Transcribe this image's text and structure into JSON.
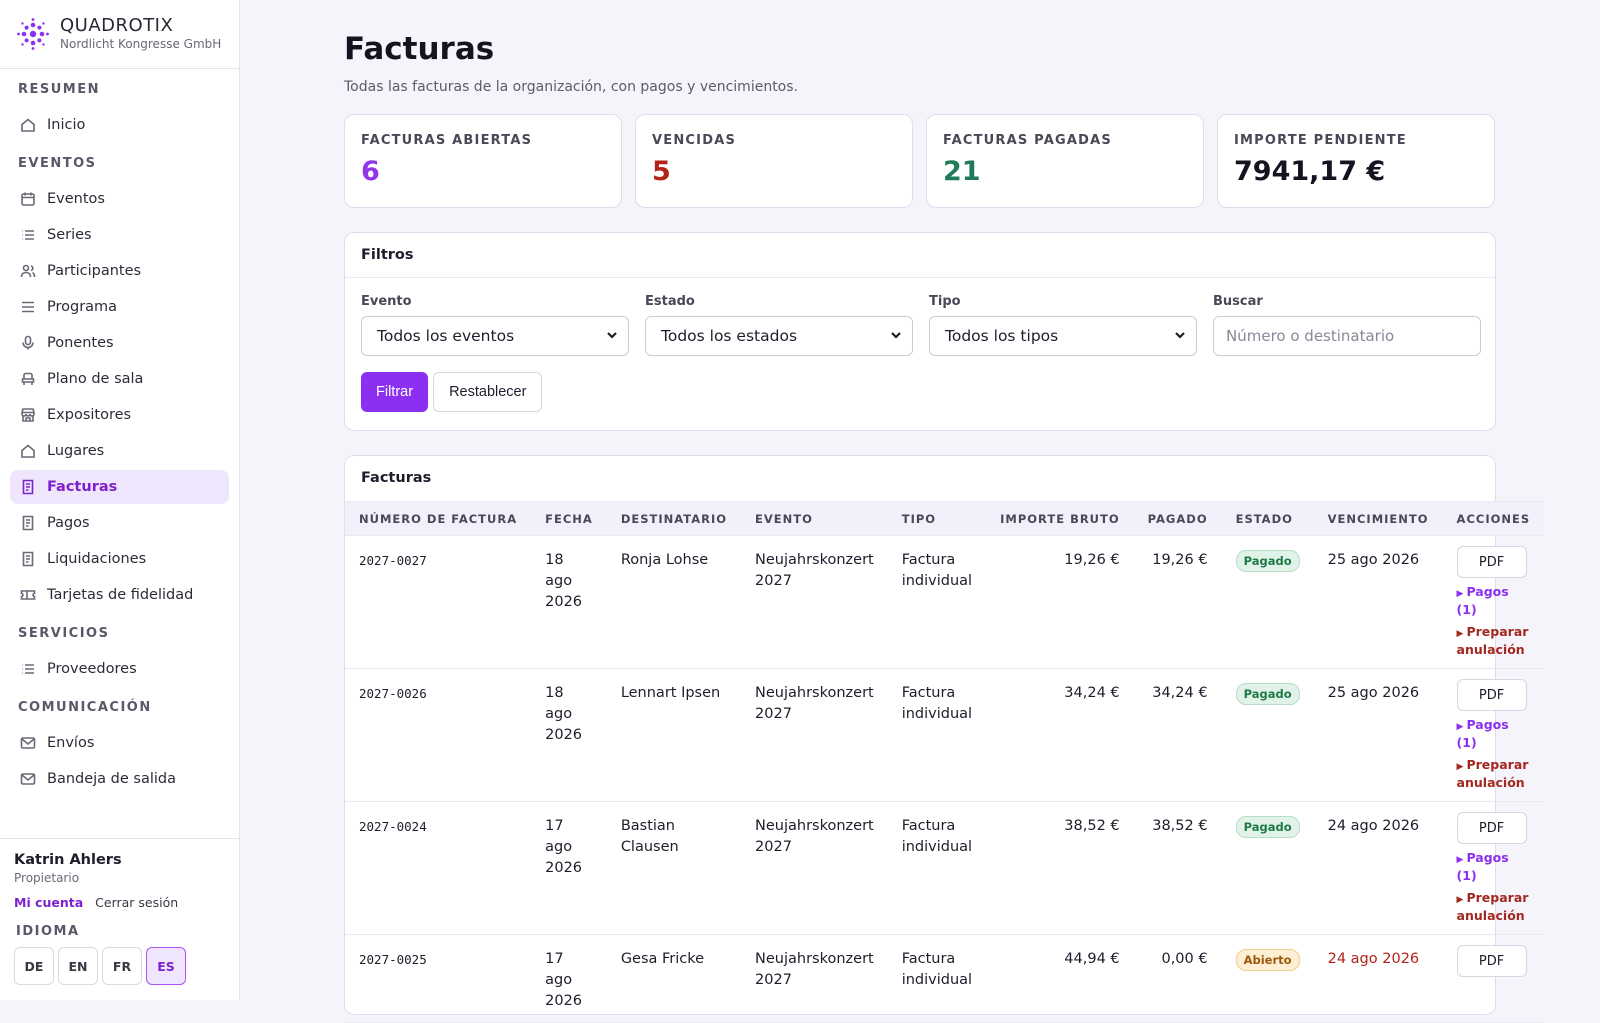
{
  "brand": {
    "name": "QUADROTIX",
    "org": "Nordlicht Kongresse GmbH"
  },
  "sidebar": {
    "sections": [
      {
        "title": "RESUMEN",
        "items": [
          {
            "label": "Inicio",
            "icon": "home-icon"
          }
        ]
      },
      {
        "title": "EVENTOS",
        "items": [
          {
            "label": "Eventos",
            "icon": "calendar-icon"
          },
          {
            "label": "Series",
            "icon": "list-icon"
          },
          {
            "label": "Participantes",
            "icon": "users-icon"
          },
          {
            "label": "Programa",
            "icon": "lines-icon"
          },
          {
            "label": "Ponentes",
            "icon": "microphone-icon"
          },
          {
            "label": "Plano de sala",
            "icon": "seat-icon"
          },
          {
            "label": "Expositores",
            "icon": "store-icon"
          },
          {
            "label": "Lugares",
            "icon": "home-icon"
          },
          {
            "label": "Facturas",
            "icon": "document-icon",
            "active": true
          },
          {
            "label": "Pagos",
            "icon": "document-icon"
          },
          {
            "label": "Liquidaciones",
            "icon": "document-icon"
          },
          {
            "label": "Tarjetas de fidelidad",
            "icon": "ticket-icon"
          }
        ]
      },
      {
        "title": "SERVICIOS",
        "items": [
          {
            "label": "Proveedores",
            "icon": "list-icon"
          }
        ]
      },
      {
        "title": "COMUNICACIÓN",
        "items": [
          {
            "label": "Envíos",
            "icon": "mail-icon"
          },
          {
            "label": "Bandeja de salida",
            "icon": "mail-icon"
          }
        ]
      }
    ]
  },
  "user": {
    "name": "Katrin Ahlers",
    "role": "Propietario",
    "account_link": "Mi cuenta",
    "logout_link": "Cerrar sesión",
    "language_title": "IDIOMA",
    "languages": [
      "DE",
      "EN",
      "FR",
      "ES"
    ],
    "active_language": "ES"
  },
  "page": {
    "title": "Facturas",
    "subtitle": "Todas las facturas de la organización, con pagos y vencimientos."
  },
  "stats": [
    {
      "label": "FACTURAS ABIERTAS",
      "value": "6",
      "color": "#9333ea"
    },
    {
      "label": "VENCIDAS",
      "value": "5",
      "color": "#b42318"
    },
    {
      "label": "FACTURAS PAGADAS",
      "value": "21",
      "color": "#1f7a57"
    },
    {
      "label": "IMPORTE PENDIENTE",
      "value": "7941,17 €",
      "color": "#151320"
    }
  ],
  "filters": {
    "title": "Filtros",
    "event_label": "Evento",
    "event_value": "Todos los eventos",
    "status_label": "Estado",
    "status_value": "Todos los estados",
    "type_label": "Tipo",
    "type_value": "Todos los tipos",
    "search_label": "Buscar",
    "search_placeholder": "Número o destinatario",
    "filter_button": "Filtrar",
    "reset_button": "Restablecer"
  },
  "invoices": {
    "title": "Facturas",
    "columns": [
      "NÚMERO DE FACTURA",
      "FECHA",
      "DESTINATARIO",
      "EVENTO",
      "TIPO",
      "IMPORTE BRUTO",
      "PAGADO",
      "ESTADO",
      "VENCIMIENTO",
      "ACCIONES"
    ],
    "rows": [
      {
        "number": "2027-0027",
        "date": "18 ago 2026",
        "recipient": "Ronja Lohse",
        "event": "Neujahrskonzert 2027",
        "type": "Factura individual",
        "gross": "19,26 €",
        "paid": "19,26 €",
        "status": "Pagado",
        "status_kind": "paid",
        "due": "25 ago 2026",
        "overdue": false,
        "pdf": "PDF",
        "payments": "Pagos (1)",
        "cancel": "Preparar anulación"
      },
      {
        "number": "2027-0026",
        "date": "18 ago 2026",
        "recipient": "Lennart Ipsen",
        "event": "Neujahrskonzert 2027",
        "type": "Factura individual",
        "gross": "34,24 €",
        "paid": "34,24 €",
        "status": "Pagado",
        "status_kind": "paid",
        "due": "25 ago 2026",
        "overdue": false,
        "pdf": "PDF",
        "payments": "Pagos (1)",
        "cancel": "Preparar anulación"
      },
      {
        "number": "2027-0024",
        "date": "17 ago 2026",
        "recipient": "Bastian Clausen",
        "event": "Neujahrskonzert 2027",
        "type": "Factura individual",
        "gross": "38,52 €",
        "paid": "38,52 €",
        "status": "Pagado",
        "status_kind": "paid",
        "due": "24 ago 2026",
        "overdue": false,
        "pdf": "PDF",
        "payments": "Pagos (1)",
        "cancel": "Preparar anulación"
      },
      {
        "number": "2027-0025",
        "date": "17 ago 2026",
        "recipient": "Gesa Fricke",
        "event": "Neujahrskonzert 2027",
        "type": "Factura individual",
        "gross": "44,94 €",
        "paid": "0,00 €",
        "status": "Abierto",
        "status_kind": "open",
        "due": "24 ago 2026",
        "overdue": true,
        "pdf": "PDF",
        "payments": "",
        "cancel": ""
      }
    ]
  }
}
